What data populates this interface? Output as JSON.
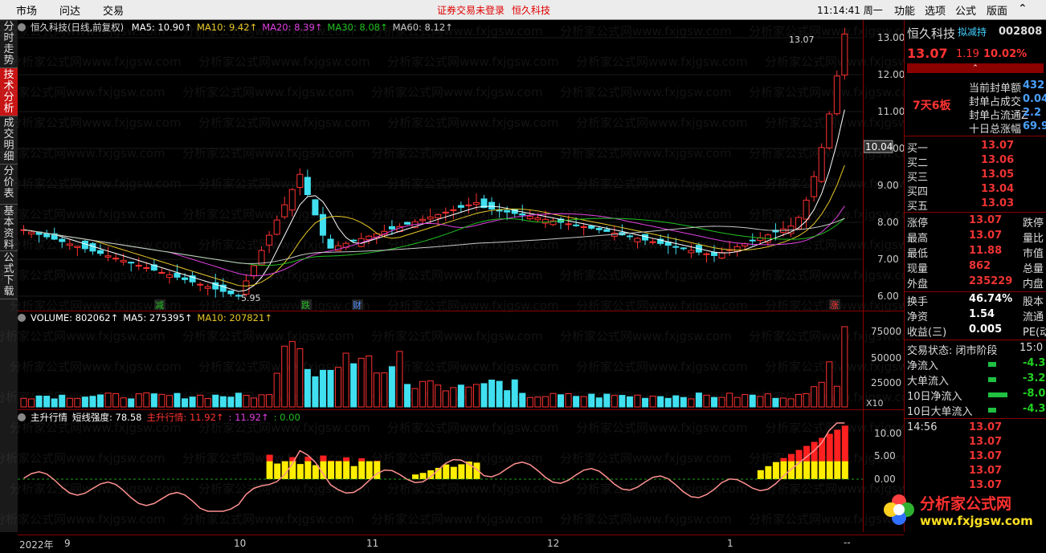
{
  "menubar": {
    "left_items": [
      "市场",
      "问达",
      "交易"
    ],
    "warning": "证券交易未登录",
    "stock_name": "恒久科技",
    "clock": "11:14:41 周一",
    "right_items": [
      "功能",
      "选项",
      "公式",
      "版面"
    ]
  },
  "left_tabs": [
    {
      "label": "分时走势",
      "active": false
    },
    {
      "label": "技术分析",
      "active": true
    },
    {
      "label": "成交明细",
      "active": false
    },
    {
      "label": "分价表",
      "active": false
    },
    {
      "label": "基本资料",
      "active": false
    },
    {
      "label": "公式下载",
      "active": false
    }
  ],
  "kline": {
    "title": "恒久科技(日线,前复权)",
    "ma": [
      {
        "label": "MA5: 10.90",
        "color": "#ffffff"
      },
      {
        "label": "MA10: 9.42",
        "color": "#e8c828"
      },
      {
        "label": "MA20: 8.39",
        "color": "#e040e0"
      },
      {
        "label": "MA30: 8.08",
        "color": "#20c020"
      },
      {
        "label": "MA60: 8.12",
        "color": "#c8c8c8"
      }
    ],
    "y_ticks": [
      "13.00",
      "12.00",
      "11.00",
      "10.00",
      "9.00",
      "8.00",
      "7.00",
      "6.00"
    ],
    "current_price_tag": "10.04",
    "high_label": "13.07",
    "low_label": "5.95",
    "markers": [
      {
        "text": "减",
        "color": "#20c020"
      },
      {
        "text": "跌",
        "color": "#20c020"
      },
      {
        "text": "财",
        "color": "#5090ff"
      },
      {
        "text": "涨",
        "color": "#ff3333"
      }
    ]
  },
  "volume": {
    "legend": [
      {
        "label": "VOLUME: 802062",
        "color": "#ffffff"
      },
      {
        "label": "MA5: 275395",
        "color": "#ffffff"
      },
      {
        "label": "MA10: 207821",
        "color": "#e8c828"
      }
    ],
    "y_ticks": [
      "75000",
      "50000",
      "25000"
    ],
    "unit": "X10"
  },
  "indicator": {
    "legend": [
      {
        "label": "主升行情",
        "color": "#ffffff"
      },
      {
        "label": "短线强度: 78.58",
        "color": "#ffffff"
      },
      {
        "label": "主升行情: 11.92",
        "color": "#ff3333"
      },
      {
        "label": ": 11.92",
        "color": "#e040e0"
      },
      {
        "label": ": 0.00",
        "color": "#20c020"
      }
    ],
    "y_ticks": [
      "10.00",
      "5.00",
      "0.00"
    ]
  },
  "time_axis": [
    "2022年",
    "9",
    "10",
    "11",
    "12",
    "1"
  ],
  "right_panel": {
    "name": "恒久科技",
    "tag": "拟减持",
    "code": "002808",
    "price": "13.07",
    "change": "1.19",
    "pct": "10.02%",
    "board": "7天6板",
    "seal_rows": [
      {
        "label": "当前封单额",
        "value": "432"
      },
      {
        "label": "封单占成交",
        "value": "0.04"
      },
      {
        "label": "封单占流通Z",
        "value": "2.2"
      },
      {
        "label": "十日总涨幅",
        "value": "69.9"
      }
    ],
    "bids": [
      {
        "label": "买一",
        "value": "13.07"
      },
      {
        "label": "买二",
        "value": "13.06"
      },
      {
        "label": "买三",
        "value": "13.05"
      },
      {
        "label": "买四",
        "value": "13.04"
      },
      {
        "label": "买五",
        "value": "13.03"
      }
    ],
    "stats": [
      {
        "label": "涨停",
        "value": "13.07",
        "right": "跌停"
      },
      {
        "label": "最高",
        "value": "13.07",
        "right": "量比"
      },
      {
        "label": "最低",
        "value": "11.88",
        "right": "市值"
      },
      {
        "label": "现量",
        "value": "862",
        "right": "总量"
      },
      {
        "label": "外盘",
        "value": "235229",
        "right": "内盘"
      }
    ],
    "stats2": [
      {
        "label": "换手",
        "value": "46.74%",
        "right": "股本"
      },
      {
        "label": "净资",
        "value": "1.54",
        "right": "流通"
      },
      {
        "label": "收益(三)",
        "value": "0.005",
        "right": "PE(动)"
      }
    ],
    "status_label": "交易状态: 闭市阶段",
    "status_time": "15:0",
    "flows": [
      {
        "label": "净流入",
        "value": "-4.3"
      },
      {
        "label": "大单流入",
        "value": "-3.2"
      },
      {
        "label": "10日净流入",
        "value": "-8.0"
      },
      {
        "label": "10日大单流入",
        "value": "-4.3"
      }
    ],
    "ticks": [
      {
        "time": "14:56",
        "price": "13.07"
      },
      {
        "time": "",
        "price": "13.07"
      },
      {
        "time": "",
        "price": "13.07"
      },
      {
        "time": "",
        "price": "13.07"
      },
      {
        "time": "",
        "price": "13.07"
      }
    ]
  },
  "watermark": "分析家公式网www.fxjgsw.com",
  "logo": {
    "title": "分析家公式网",
    "url": "www.fxjgsw.com"
  }
}
